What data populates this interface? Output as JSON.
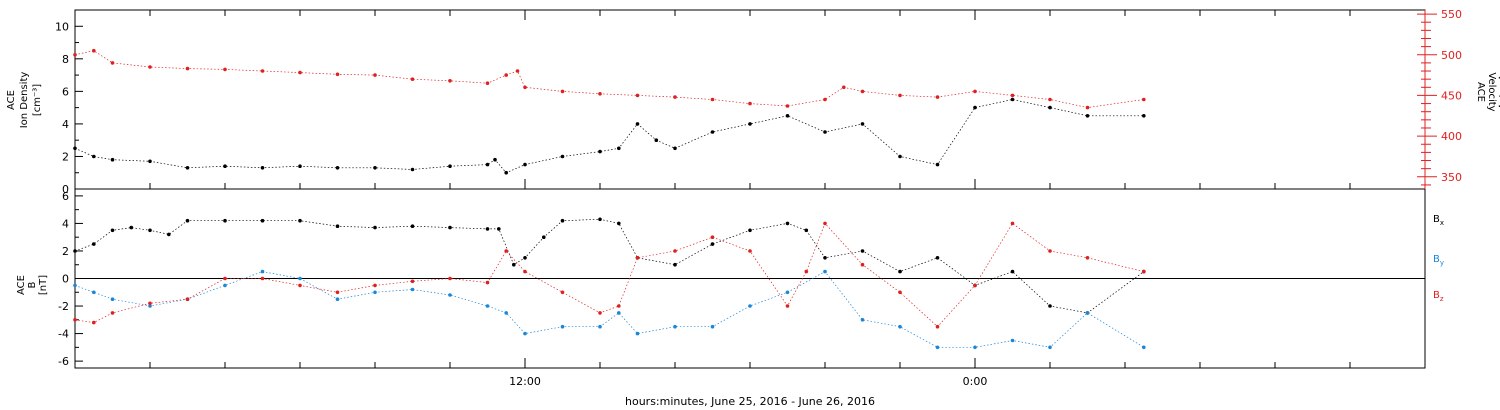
{
  "chart_data": [
    {
      "type": "scatter",
      "panel": "top",
      "ylabel_left": [
        "ACE",
        "Ion Density",
        "[cm⁻³]"
      ],
      "ylabel_right": [
        "ACE",
        "Velocity",
        "[km/s]"
      ],
      "ylim_left": [
        0,
        11
      ],
      "yticks_left": [
        0,
        2,
        4,
        6,
        8,
        10
      ],
      "ylim_right": [
        335,
        555
      ],
      "yticks_right": [
        350,
        400,
        450,
        500,
        550
      ],
      "xlim_hours": [
        0,
        36
      ],
      "series": [
        {
          "name": "",
          "axis": "left",
          "color": "#000000",
          "x": [
            0,
            0.5,
            1,
            2,
            3,
            4,
            5,
            6,
            7,
            8,
            9,
            10,
            11,
            11.2,
            11.5,
            12,
            13,
            14,
            14.5,
            15,
            15.5,
            16,
            17,
            18,
            19,
            20,
            21,
            22,
            23,
            24,
            25,
            26,
            27,
            28.5
          ],
          "y": [
            2.5,
            2.0,
            1.8,
            1.7,
            1.3,
            1.4,
            1.3,
            1.4,
            1.3,
            1.3,
            1.2,
            1.4,
            1.5,
            1.8,
            1.0,
            1.5,
            2.0,
            2.3,
            2.5,
            4.0,
            3.0,
            2.5,
            3.5,
            4.0,
            4.5,
            3.5,
            4.0,
            2.0,
            1.5,
            5.0,
            5.5,
            5.0,
            4.5,
            4.5
          ]
        },
        {
          "name": "",
          "axis": "right",
          "color": "#e02020",
          "x": [
            0,
            0.5,
            1,
            2,
            3,
            4,
            5,
            6,
            7,
            8,
            9,
            10,
            11,
            11.5,
            11.8,
            12,
            13,
            14,
            15,
            16,
            17,
            18,
            19,
            20,
            20.5,
            21,
            22,
            23,
            24,
            25,
            26,
            27,
            28.5
          ],
          "y": [
            500,
            505,
            490,
            485,
            483,
            482,
            480,
            478,
            476,
            475,
            470,
            468,
            465,
            475,
            480,
            460,
            455,
            452,
            450,
            448,
            445,
            440,
            437,
            445,
            460,
            455,
            450,
            448,
            455,
            450,
            445,
            435,
            445
          ]
        }
      ]
    },
    {
      "type": "scatter",
      "panel": "bottom",
      "ylabel_left": [
        "ACE",
        "B",
        "[nT]"
      ],
      "ylim": [
        -6.5,
        6.5
      ],
      "yticks": [
        -6,
        -4,
        -2,
        0,
        2,
        4,
        6
      ],
      "xlim_hours": [
        0,
        36
      ],
      "xticks_hours": [
        12,
        24
      ],
      "xtick_labels": [
        "12:00",
        "0:00"
      ],
      "xlabel": "hours:minutes, June 25, 2016 - June 26, 2016",
      "series": [
        {
          "name": "Bx",
          "color": "#000000",
          "x": [
            0,
            0.5,
            1,
            1.5,
            2,
            2.5,
            3,
            4,
            5,
            6,
            7,
            8,
            9,
            10,
            11,
            11.3,
            11.7,
            12,
            12.5,
            13,
            14,
            14.5,
            15,
            16,
            17,
            18,
            19,
            19.5,
            20,
            21,
            22,
            23,
            24,
            25,
            26,
            27,
            28.5
          ],
          "y": [
            2.0,
            2.5,
            3.5,
            3.7,
            3.5,
            3.2,
            4.2,
            4.2,
            4.2,
            4.2,
            3.8,
            3.7,
            3.8,
            3.7,
            3.6,
            3.6,
            1.0,
            1.5,
            3.0,
            4.2,
            4.3,
            4.0,
            1.5,
            1.0,
            2.5,
            3.5,
            4.0,
            3.5,
            1.5,
            2.0,
            0.5,
            1.5,
            -0.5,
            0.5,
            -2.0,
            -2.5,
            0.5
          ]
        },
        {
          "name": "By",
          "color": "#1c86d8",
          "x": [
            0,
            0.5,
            1,
            2,
            3,
            4,
            5,
            6,
            7,
            8,
            9,
            10,
            11,
            11.5,
            12,
            13,
            14,
            14.5,
            15,
            16,
            17,
            18,
            19,
            20,
            21,
            22,
            23,
            24,
            25,
            26,
            27,
            28.5
          ],
          "y": [
            -0.5,
            -1.0,
            -1.5,
            -2.0,
            -1.5,
            -0.5,
            0.5,
            0.0,
            -1.5,
            -1.0,
            -0.8,
            -1.2,
            -2.0,
            -2.5,
            -4.0,
            -3.5,
            -3.5,
            -2.5,
            -4.0,
            -3.5,
            -3.5,
            -2.0,
            -1.0,
            0.5,
            -3.0,
            -3.5,
            -5.0,
            -5.0,
            -4.5,
            -5.0,
            -2.5,
            -5.0
          ]
        },
        {
          "name": "Bz",
          "color": "#e02020",
          "x": [
            0,
            0.5,
            1,
            2,
            3,
            4,
            5,
            6,
            7,
            8,
            9,
            10,
            11,
            11.5,
            12,
            13,
            14,
            14.5,
            15,
            16,
            17,
            18,
            19,
            19.5,
            20,
            21,
            22,
            23,
            24,
            25,
            26,
            27,
            28.5
          ],
          "y": [
            -3.0,
            -3.2,
            -2.5,
            -1.8,
            -1.5,
            0.0,
            0.0,
            -0.5,
            -1.0,
            -0.5,
            -0.2,
            0.0,
            -0.3,
            2.0,
            0.5,
            -1.0,
            -2.5,
            -2.0,
            1.5,
            2.0,
            3.0,
            2.0,
            -2.0,
            0.5,
            4.0,
            1.0,
            -1.0,
            -3.5,
            -0.5,
            4.0,
            2.0,
            1.5,
            0.5
          ]
        }
      ],
      "legend": [
        "Bx",
        "By",
        "Bz"
      ],
      "legend_placement": "right"
    }
  ]
}
